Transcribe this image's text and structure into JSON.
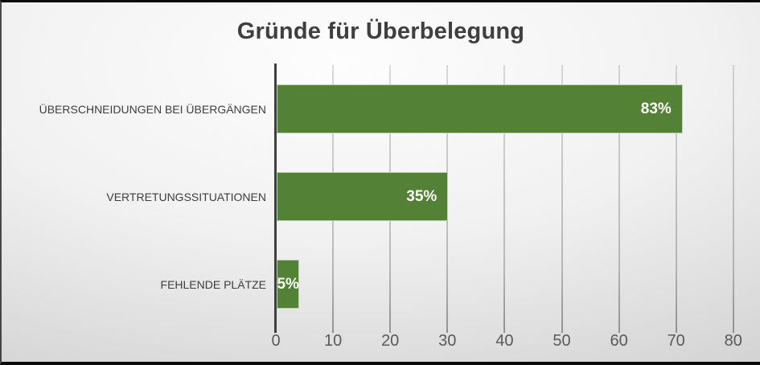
{
  "chart_data": {
    "type": "bar",
    "orientation": "horizontal",
    "title": "Gründe für Überbelegung",
    "categories": [
      "ÜBERSCHNEIDUNGEN BEI ÜBERGÄNGEN",
      "VERTRETUNGSSITUATIONEN",
      "FEHLENDE PLÄTZE"
    ],
    "values": [
      71,
      30,
      4
    ],
    "data_labels": [
      "83%",
      "35%",
      "5%"
    ],
    "xlabel": "",
    "ylabel": "",
    "x_axis": {
      "min": 0,
      "max": 80,
      "ticks": [
        0,
        10,
        20,
        30,
        40,
        50,
        60,
        70,
        80
      ]
    },
    "grid": true,
    "legend_position": "none",
    "bar_color": "#538135",
    "data_label_color": "#ffffff"
  }
}
